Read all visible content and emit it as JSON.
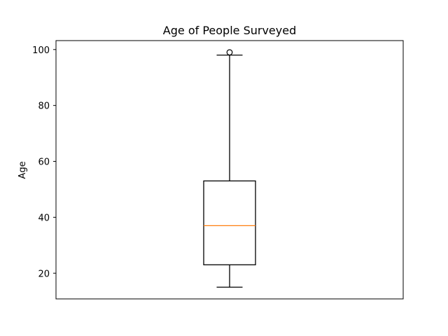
{
  "chart_data": {
    "type": "box",
    "title": "Age of People Surveyed",
    "xlabel": "",
    "ylabel": "Age",
    "ylim": [
      10.8,
      103.2
    ],
    "yticks": [
      20,
      40,
      60,
      80,
      100
    ],
    "grid": false,
    "series": [
      {
        "whisker_low": 15,
        "q1": 23,
        "median": 37,
        "q3": 53,
        "whisker_high": 98,
        "outliers": [
          99
        ]
      }
    ],
    "colors": {
      "box": "#000000",
      "median": "#ff7f0e",
      "background": "#ffffff"
    }
  }
}
